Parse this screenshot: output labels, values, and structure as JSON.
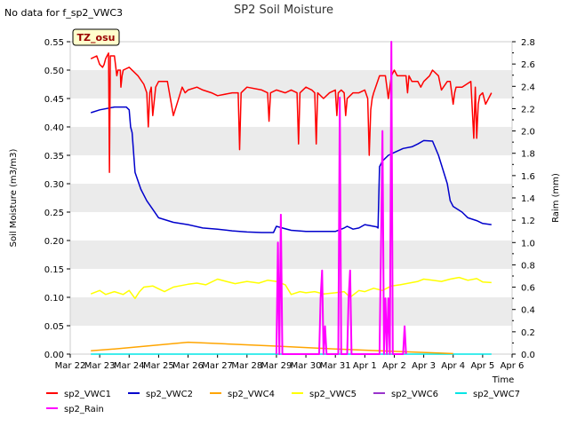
{
  "chart_data": {
    "type": "line",
    "title": "SP2 Soil Moisture",
    "note": "No data for f_sp2_VWC3",
    "badge": "TZ_osu",
    "xlabel": "Time",
    "ylabel": "Soil Moisture (m3/m3)",
    "y2label": "Raim (mm)",
    "x_ticks": [
      "Mar 22",
      "Mar 23",
      "Mar 24",
      "Mar 25",
      "Mar 26",
      "Mar 27",
      "Mar 28",
      "Mar 29",
      "Mar 30",
      "Mar 31",
      "Apr 1",
      "Apr 2",
      "Apr 3",
      "Apr 4",
      "Apr 5",
      "Apr 6"
    ],
    "xlim": [
      0,
      15
    ],
    "ylim": [
      0,
      0.55
    ],
    "y_ticks": [
      "0.00",
      "0.05",
      "0.10",
      "0.15",
      "0.20",
      "0.25",
      "0.30",
      "0.35",
      "0.40",
      "0.45",
      "0.50",
      "0.55"
    ],
    "y2lim": [
      0,
      2.8
    ],
    "y2_ticks": [
      "0.0",
      "0.2",
      "0.4",
      "0.6",
      "0.8",
      "1.0",
      "1.2",
      "1.4",
      "1.6",
      "1.8",
      "2.0",
      "2.2",
      "2.4",
      "2.6",
      "2.8"
    ],
    "grid": "horizontal bands",
    "legend_position": "bottom",
    "colors": {
      "sp2_VWC1": "#ff0000",
      "sp2_VWC2": "#0000cc",
      "sp2_VWC4": "#ffa500",
      "sp2_VWC5": "#ffff00",
      "sp2_VWC6": "#9933cc",
      "sp2_VWC7": "#00e5e5",
      "sp2_Rain": "#ff00ff"
    },
    "legend": [
      "sp2_VWC1",
      "sp2_VWC2",
      "sp2_VWC4",
      "sp2_VWC5",
      "sp2_VWC6",
      "sp2_VWC7",
      "sp2_Rain"
    ],
    "series": [
      {
        "name": "sp2_VWC1",
        "axis": "left",
        "x": [
          0.7,
          0.9,
          1.0,
          1.1,
          1.15,
          1.2,
          1.25,
          1.3,
          1.33,
          1.36,
          1.5,
          1.58,
          1.62,
          1.7,
          1.72,
          1.76,
          1.8,
          2.0,
          2.3,
          2.5,
          2.6,
          2.65,
          2.7,
          2.75,
          2.8,
          2.9,
          3.0,
          3.1,
          3.3,
          3.5,
          3.8,
          3.85,
          3.9,
          4.0,
          4.3,
          4.5,
          4.8,
          5.0,
          5.5,
          5.7,
          5.75,
          5.8,
          6.0,
          6.5,
          6.7,
          6.75,
          6.8,
          7.0,
          7.3,
          7.5,
          7.7,
          7.75,
          7.8,
          8.0,
          8.2,
          8.3,
          8.35,
          8.4,
          8.6,
          8.8,
          9.0,
          9.05,
          9.1,
          9.2,
          9.3,
          9.35,
          9.4,
          9.5,
          9.6,
          9.8,
          10.0,
          10.1,
          10.15,
          10.2,
          10.25,
          10.3,
          10.5,
          10.7,
          10.8,
          10.9,
          11.0,
          11.1,
          11.3,
          11.4,
          11.45,
          11.5,
          11.6,
          11.7,
          11.8,
          11.9,
          12.0,
          12.2,
          12.3,
          12.5,
          12.6,
          12.8,
          12.9,
          13.0,
          13.05,
          13.1,
          13.3,
          13.6,
          13.7,
          13.75,
          13.8,
          13.85,
          13.9,
          14.0,
          14.1,
          14.3
        ],
        "y": [
          0.52,
          0.525,
          0.51,
          0.505,
          0.51,
          0.52,
          0.525,
          0.53,
          0.32,
          0.525,
          0.525,
          0.49,
          0.5,
          0.5,
          0.47,
          0.49,
          0.5,
          0.505,
          0.49,
          0.475,
          0.46,
          0.4,
          0.46,
          0.47,
          0.42,
          0.47,
          0.48,
          0.48,
          0.48,
          0.42,
          0.47,
          0.465,
          0.46,
          0.465,
          0.47,
          0.465,
          0.46,
          0.455,
          0.46,
          0.46,
          0.36,
          0.46,
          0.47,
          0.465,
          0.46,
          0.41,
          0.46,
          0.465,
          0.46,
          0.465,
          0.46,
          0.37,
          0.46,
          0.47,
          0.465,
          0.46,
          0.37,
          0.46,
          0.45,
          0.46,
          0.465,
          0.42,
          0.46,
          0.465,
          0.46,
          0.42,
          0.45,
          0.455,
          0.46,
          0.46,
          0.465,
          0.45,
          0.35,
          0.43,
          0.45,
          0.46,
          0.49,
          0.49,
          0.45,
          0.49,
          0.5,
          0.49,
          0.49,
          0.49,
          0.46,
          0.49,
          0.48,
          0.48,
          0.48,
          0.47,
          0.48,
          0.49,
          0.5,
          0.49,
          0.465,
          0.48,
          0.48,
          0.44,
          0.46,
          0.47,
          0.47,
          0.48,
          0.38,
          0.47,
          0.38,
          0.44,
          0.455,
          0.46,
          0.44,
          0.46
        ]
      },
      {
        "name": "sp2_VWC2",
        "axis": "left",
        "x": [
          0.7,
          1.0,
          1.5,
          1.9,
          2.0,
          2.05,
          2.1,
          2.2,
          2.4,
          2.6,
          2.8,
          3.0,
          3.5,
          4.0,
          4.5,
          5.0,
          5.5,
          6.0,
          6.5,
          6.9,
          7.0,
          7.2,
          7.5,
          8.0,
          8.5,
          9.0,
          9.3,
          9.4,
          9.6,
          9.8,
          10.0,
          10.2,
          10.4,
          10.45,
          10.5,
          10.6,
          10.8,
          11.0,
          11.3,
          11.6,
          11.8,
          12.0,
          12.3,
          12.5,
          12.8,
          12.9,
          13.0,
          13.3,
          13.5,
          13.8,
          14.0,
          14.3
        ],
        "y": [
          0.425,
          0.43,
          0.435,
          0.435,
          0.43,
          0.4,
          0.39,
          0.32,
          0.29,
          0.27,
          0.255,
          0.24,
          0.232,
          0.228,
          0.222,
          0.22,
          0.217,
          0.215,
          0.214,
          0.214,
          0.225,
          0.222,
          0.218,
          0.216,
          0.216,
          0.216,
          0.222,
          0.225,
          0.22,
          0.222,
          0.228,
          0.226,
          0.224,
          0.222,
          0.33,
          0.34,
          0.35,
          0.355,
          0.362,
          0.365,
          0.37,
          0.376,
          0.375,
          0.35,
          0.3,
          0.27,
          0.26,
          0.25,
          0.24,
          0.235,
          0.23,
          0.228
        ]
      },
      {
        "name": "sp2_VWC4",
        "axis": "left",
        "x": [
          0.7,
          1.5,
          4.0,
          7.0,
          9.0,
          10.5,
          12.5,
          13.0
        ],
        "y": [
          0.006,
          0.009,
          0.021,
          0.014,
          0.009,
          0.006,
          0.002,
          0.001
        ]
      },
      {
        "name": "sp2_VWC5",
        "axis": "left",
        "x": [
          0.7,
          1.0,
          1.2,
          1.5,
          1.8,
          2.0,
          2.2,
          2.35,
          2.5,
          2.8,
          3.0,
          3.2,
          3.5,
          3.7,
          4.0,
          4.3,
          4.6,
          5.0,
          5.3,
          5.6,
          6.0,
          6.4,
          6.7,
          7.0,
          7.3,
          7.5,
          7.8,
          8.0,
          8.3,
          8.6,
          9.0,
          9.3,
          9.5,
          9.8,
          10.0,
          10.3,
          10.6,
          10.9,
          11.2,
          11.5,
          11.8,
          12.0,
          12.3,
          12.6,
          12.9,
          13.2,
          13.5,
          13.8,
          14.0,
          14.3
        ],
        "y": [
          0.106,
          0.112,
          0.105,
          0.11,
          0.105,
          0.112,
          0.098,
          0.11,
          0.118,
          0.12,
          0.115,
          0.11,
          0.118,
          0.12,
          0.123,
          0.125,
          0.122,
          0.132,
          0.128,
          0.124,
          0.128,
          0.125,
          0.13,
          0.128,
          0.122,
          0.105,
          0.11,
          0.108,
          0.11,
          0.106,
          0.108,
          0.11,
          0.1,
          0.112,
          0.11,
          0.116,
          0.112,
          0.12,
          0.122,
          0.125,
          0.128,
          0.132,
          0.13,
          0.128,
          0.132,
          0.135,
          0.13,
          0.133,
          0.127,
          0.126
        ]
      },
      {
        "name": "sp2_VWC7",
        "axis": "left",
        "x": [
          0.7,
          14.3
        ],
        "y": [
          0.0,
          0.0
        ]
      },
      {
        "name": "sp2_Rain",
        "axis": "right",
        "x": [
          7.0,
          7.05,
          7.1,
          7.15,
          7.2,
          8.45,
          8.5,
          8.55,
          8.6,
          8.65,
          8.7,
          9.1,
          9.15,
          9.2,
          9.4,
          9.45,
          9.5,
          9.55,
          9.6,
          10.5,
          10.55,
          10.6,
          10.65,
          10.7,
          10.75,
          10.8,
          10.85,
          10.9,
          10.95,
          11.0,
          11.05,
          11.1,
          11.3,
          11.35,
          11.4
        ],
        "y": [
          0,
          1.0,
          0,
          1.25,
          0,
          0,
          0.5,
          0.75,
          0,
          0.25,
          0,
          0,
          2.3,
          0,
          0,
          0.5,
          0.75,
          0,
          0,
          0,
          1.0,
          2.0,
          0,
          0.5,
          0,
          0.5,
          0,
          2.8,
          0,
          0,
          0,
          0,
          0,
          0.25,
          0
        ]
      }
    ]
  }
}
